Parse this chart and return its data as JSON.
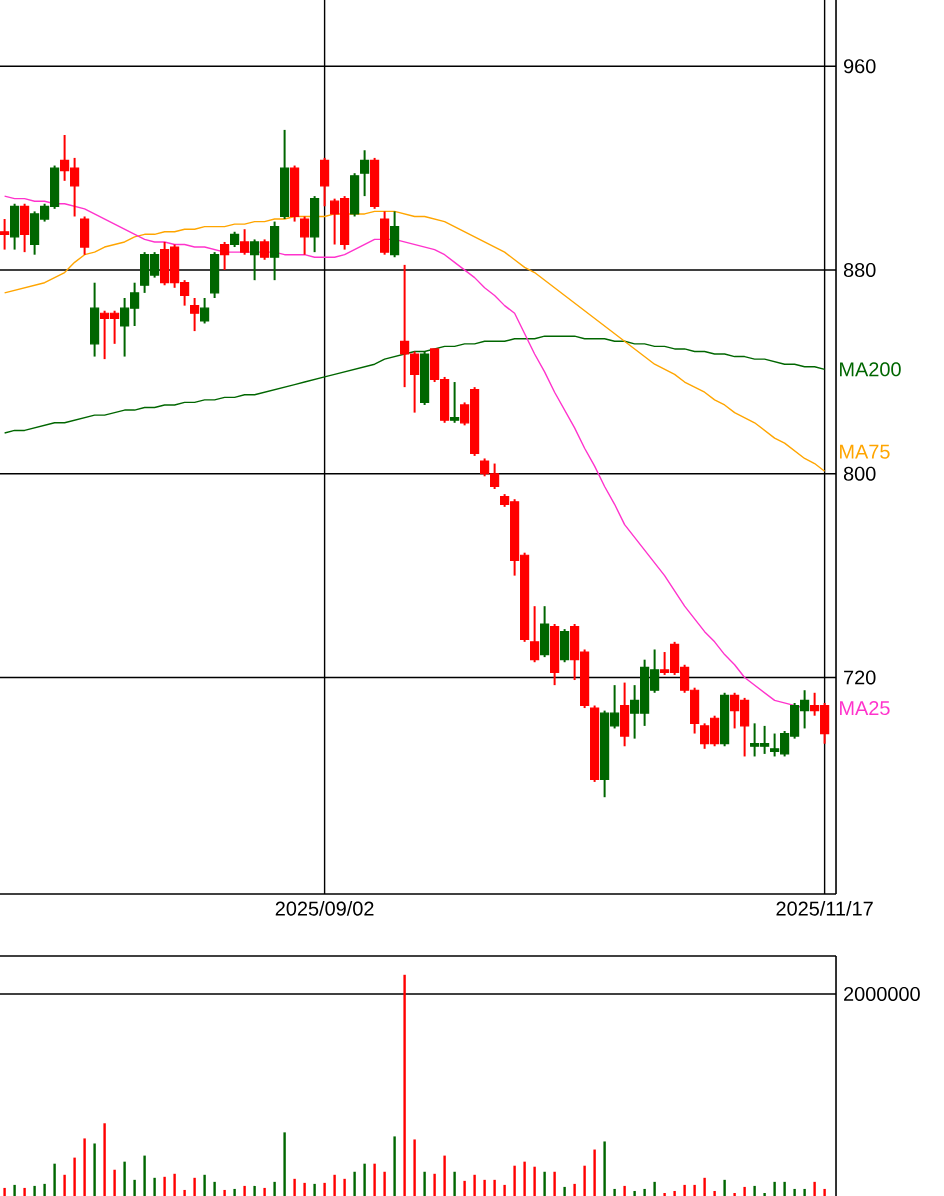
{
  "chart_data": [
    {
      "type": "candlestick",
      "categories": [
        null,
        null,
        null,
        null,
        null,
        null,
        null,
        null,
        null,
        null,
        null,
        null,
        null,
        null,
        null,
        null,
        null,
        null,
        null,
        null,
        null,
        null,
        null,
        null,
        null,
        null,
        null,
        null,
        null,
        null,
        null,
        null,
        "2025/09/02",
        null,
        null,
        null,
        null,
        null,
        null,
        null,
        null,
        null,
        null,
        null,
        null,
        null,
        null,
        null,
        null,
        null,
        null,
        null,
        null,
        null,
        null,
        null,
        null,
        null,
        null,
        null,
        null,
        null,
        null,
        null,
        null,
        null,
        null,
        null,
        null,
        null,
        null,
        null,
        null,
        null,
        null,
        null,
        null,
        null,
        null,
        null,
        null,
        null,
        "2025/11/17"
      ],
      "ylim": [
        635,
        986
      ],
      "yticks": [
        720,
        800,
        880,
        960
      ],
      "grid": true,
      "series": [
        {
          "type": "candlestick",
          "ohlc": [
            [
              895,
              900,
              888,
              894
            ],
            [
              893,
              906,
              888,
              905
            ],
            [
              905,
              906,
              887,
              894
            ],
            [
              890,
              903,
              886,
              902
            ],
            [
              900,
              906,
              899,
              905
            ],
            [
              905,
              921,
              904,
              920
            ],
            [
              923,
              933,
              915,
              919
            ],
            [
              920,
              924,
              901,
              913
            ],
            [
              900,
              901,
              886,
              889
            ],
            [
              851,
              875,
              846,
              865
            ],
            [
              863,
              864,
              845,
              861
            ],
            [
              863,
              864,
              851,
              861
            ],
            [
              858,
              869,
              846,
              865
            ],
            [
              865,
              875,
              858,
              871
            ],
            [
              874,
              887,
              871,
              886
            ],
            [
              878,
              887,
              877,
              886
            ],
            [
              888,
              891,
              874,
              875
            ],
            [
              889,
              890,
              873,
              875
            ],
            [
              875,
              876,
              866,
              870
            ],
            [
              866,
              869,
              856,
              863
            ],
            [
              860,
              869,
              859,
              865
            ],
            [
              871,
              887,
              869,
              886
            ],
            [
              890,
              891,
              880,
              886
            ],
            [
              890,
              895,
              889,
              894
            ],
            [
              891,
              896,
              886,
              887
            ],
            [
              886,
              892,
              876,
              891
            ],
            [
              891,
              892,
              884,
              885
            ],
            [
              885,
              899,
              876,
              897
            ],
            [
              901,
              935,
              900,
              920
            ],
            [
              920,
              921,
              899,
              901
            ],
            [
              900,
              901,
              886,
              893
            ],
            [
              893,
              909,
              887,
              908
            ],
            [
              923,
              924,
              905,
              913
            ],
            [
              907,
              908,
              890,
              902
            ],
            [
              908,
              909,
              888,
              890
            ],
            [
              902,
              918,
              901,
              917
            ],
            [
              918,
              927,
              909,
              923
            ],
            [
              923,
              924,
              904,
              905
            ],
            [
              900,
              903,
              886,
              887
            ],
            [
              886,
              903,
              885,
              897
            ],
            [
              852,
              882,
              834,
              847
            ],
            [
              847,
              848,
              824,
              839
            ],
            [
              828,
              848,
              827,
              847
            ],
            [
              849,
              849,
              836,
              837
            ],
            [
              837,
              838,
              820,
              821
            ],
            [
              821,
              836,
              820,
              822
            ],
            [
              827,
              828,
              819,
              820
            ],
            [
              833,
              834,
              807,
              808
            ],
            [
              805,
              806,
              799,
              800
            ],
            [
              800,
              804,
              794,
              795
            ],
            [
              791,
              792,
              787,
              788
            ],
            [
              789,
              790,
              760,
              766
            ],
            [
              768,
              769,
              734,
              735
            ],
            [
              734,
              748,
              726,
              727
            ],
            [
              729,
              748,
              728,
              741
            ],
            [
              740,
              741,
              717,
              722
            ],
            [
              727,
              739,
              726,
              738
            ],
            [
              740,
              741,
              719,
              727
            ],
            [
              730,
              731,
              708,
              709
            ],
            [
              708,
              709,
              679,
              680
            ],
            [
              680,
              707,
              673,
              706
            ],
            [
              701,
              717,
              700,
              706
            ],
            [
              709,
              718,
              693,
              697
            ],
            [
              706,
              717,
              696,
              711
            ],
            [
              706,
              727,
              701,
              724
            ],
            [
              715,
              731,
              714,
              723
            ],
            [
              723,
              730,
              721,
              722
            ],
            [
              733,
              734,
              721,
              722
            ],
            [
              724,
              725,
              714,
              715
            ],
            [
              715,
              716,
              698,
              702
            ],
            [
              701,
              702,
              692,
              694
            ],
            [
              704,
              705,
              693,
              694
            ],
            [
              694,
              714,
              693,
              713
            ],
            [
              713,
              714,
              700,
              707
            ],
            [
              711,
              712,
              689,
              701
            ],
            [
              693,
              702,
              689,
              694
            ],
            [
              693,
              701,
              690,
              694
            ],
            [
              691,
              698,
              689,
              692
            ],
            [
              690,
              699,
              689,
              698
            ],
            [
              697,
              710,
              696,
              709
            ],
            [
              707,
              715,
              700,
              711
            ],
            [
              709,
              714,
              705,
              707
            ],
            [
              709,
              710,
              694,
              698
            ]
          ],
          "colors": [
            "#ff0000",
            "#006600",
            "#ff0000",
            "#006600",
            "#006600",
            "#006600",
            "#ff0000",
            "#ff0000",
            "#ff0000",
            "#006600",
            "#ff0000",
            "#ff0000",
            "#006600",
            "#006600",
            "#006600",
            "#006600",
            "#ff0000",
            "#ff0000",
            "#ff0000",
            "#ff0000",
            "#006600",
            "#006600",
            "#ff0000",
            "#006600",
            "#ff0000",
            "#006600",
            "#ff0000",
            "#006600",
            "#006600",
            "#ff0000",
            "#ff0000",
            "#006600",
            "#ff0000",
            "#ff0000",
            "#ff0000",
            "#006600",
            "#006600",
            "#ff0000",
            "#ff0000",
            "#006600",
            "#ff0000",
            "#ff0000",
            "#006600",
            "#ff0000",
            "#ff0000",
            "#006600",
            "#ff0000",
            "#ff0000",
            "#ff0000",
            "#ff0000",
            "#ff0000",
            "#ff0000",
            "#ff0000",
            "#ff0000",
            "#006600",
            "#ff0000",
            "#006600",
            "#ff0000",
            "#ff0000",
            "#ff0000",
            "#006600",
            "#006600",
            "#ff0000",
            "#006600",
            "#006600",
            "#006600",
            "#ff0000",
            "#ff0000",
            "#ff0000",
            "#ff0000",
            "#ff0000",
            "#ff0000",
            "#006600",
            "#ff0000",
            "#ff0000",
            "#006600",
            "#006600",
            "#006600",
            "#006600",
            "#006600",
            "#006600",
            "#ff0000",
            "#ff0000"
          ]
        },
        {
          "type": "line",
          "name": "MA200",
          "color": "#006600",
          "values": [
            816,
            817,
            817,
            818,
            819,
            820,
            820,
            821,
            822,
            823,
            823,
            824,
            825,
            825,
            826,
            826,
            827,
            827,
            828,
            828,
            829,
            829,
            830,
            830,
            831,
            831,
            832,
            833,
            834,
            835,
            836,
            837,
            838,
            839,
            840,
            841,
            842,
            843,
            845,
            846,
            847,
            848,
            848,
            849,
            850,
            850,
            851,
            851,
            852,
            852,
            852,
            853,
            853,
            853,
            854,
            854,
            854,
            854,
            853,
            853,
            853,
            852,
            852,
            851,
            851,
            850,
            850,
            849,
            849,
            848,
            848,
            847,
            847,
            846,
            846,
            845,
            845,
            844,
            843,
            843,
            842,
            842,
            841
          ]
        },
        {
          "type": "line",
          "name": "MA75",
          "color": "#ffa500",
          "values": [
            871,
            872,
            873,
            874,
            875,
            877,
            879,
            883,
            886,
            887,
            889,
            890,
            891,
            893,
            894,
            894,
            895,
            895,
            896,
            896,
            897,
            897,
            897,
            898,
            898,
            899,
            899,
            900,
            900,
            901,
            901,
            901,
            901,
            902,
            902,
            902,
            902,
            903,
            903,
            903,
            902,
            901,
            901,
            900,
            899,
            897,
            895,
            893,
            891,
            889,
            887,
            884,
            881,
            879,
            876,
            873,
            870,
            867,
            864,
            861,
            858,
            855,
            852,
            849,
            846,
            843,
            841,
            839,
            836,
            834,
            832,
            829,
            827,
            824,
            822,
            820,
            817,
            814,
            812,
            809,
            806,
            804,
            801
          ]
        },
        {
          "type": "line",
          "name": "MA25",
          "color": "#ff33cc",
          "values": [
            909,
            908,
            908,
            907,
            907,
            906,
            906,
            905,
            904,
            902,
            900,
            898,
            896,
            894,
            892,
            891,
            891,
            890,
            890,
            889,
            889,
            888,
            887,
            887,
            887,
            887,
            887,
            887,
            886,
            886,
            886,
            885,
            885,
            885,
            886,
            888,
            890,
            892,
            892,
            892,
            891,
            890,
            889,
            888,
            886,
            883,
            880,
            877,
            873,
            870,
            866,
            863,
            855,
            847,
            840,
            832,
            825,
            818,
            810,
            803,
            795,
            788,
            780,
            775,
            770,
            765,
            760,
            754,
            748,
            743,
            738,
            734,
            729,
            725,
            720,
            717,
            714,
            711,
            710,
            709,
            708,
            null,
            null
          ]
        }
      ]
    },
    {
      "type": "bar",
      "categories": [
        null,
        null,
        null,
        null,
        null,
        null,
        null,
        null,
        null,
        null,
        null,
        null,
        null,
        null,
        null,
        null,
        null,
        null,
        null,
        null,
        null,
        null,
        null,
        null,
        null,
        null,
        null,
        null,
        null,
        null,
        null,
        null,
        null,
        null,
        null,
        null,
        null,
        null,
        null,
        null,
        null,
        null,
        null,
        null,
        null,
        null,
        null,
        null,
        null,
        null,
        null,
        null,
        null,
        null,
        null,
        null,
        null,
        null,
        null,
        null,
        null,
        null,
        null,
        null,
        null,
        null,
        null,
        null,
        null,
        null,
        null,
        null,
        null,
        null,
        null,
        null,
        null,
        null,
        null,
        null,
        null,
        null,
        null
      ],
      "values": [
        80000,
        110000,
        80000,
        100000,
        120000,
        320000,
        210000,
        380000,
        570000,
        520000,
        720000,
        260000,
        340000,
        160000,
        400000,
        180000,
        190000,
        220000,
        60000,
        180000,
        210000,
        140000,
        60000,
        70000,
        100000,
        100000,
        80000,
        140000,
        630000,
        170000,
        130000,
        120000,
        130000,
        210000,
        170000,
        240000,
        320000,
        320000,
        240000,
        590000,
        2190000,
        560000,
        240000,
        220000,
        400000,
        240000,
        150000,
        210000,
        160000,
        160000,
        110000,
        300000,
        340000,
        290000,
        240000,
        240000,
        90000,
        120000,
        300000,
        460000,
        540000,
        70000,
        100000,
        50000,
        70000,
        140000,
        30000,
        50000,
        110000,
        110000,
        180000,
        50000,
        160000,
        30000,
        90000,
        100000,
        30000,
        140000,
        140000,
        70000,
        70000,
        140000,
        70000
      ],
      "colors": [
        "#ff0000",
        "#006600",
        "#ff0000",
        "#006600",
        "#006600",
        "#006600",
        "#ff0000",
        "#ff0000",
        "#ff0000",
        "#006600",
        "#ff0000",
        "#ff0000",
        "#006600",
        "#006600",
        "#006600",
        "#006600",
        "#ff0000",
        "#ff0000",
        "#ff0000",
        "#ff0000",
        "#006600",
        "#006600",
        "#ff0000",
        "#006600",
        "#ff0000",
        "#006600",
        "#ff0000",
        "#006600",
        "#006600",
        "#ff0000",
        "#ff0000",
        "#006600",
        "#ff0000",
        "#ff0000",
        "#ff0000",
        "#006600",
        "#006600",
        "#ff0000",
        "#ff0000",
        "#006600",
        "#ff0000",
        "#ff0000",
        "#006600",
        "#ff0000",
        "#ff0000",
        "#006600",
        "#ff0000",
        "#ff0000",
        "#ff0000",
        "#ff0000",
        "#ff0000",
        "#ff0000",
        "#ff0000",
        "#ff0000",
        "#006600",
        "#ff0000",
        "#006600",
        "#ff0000",
        "#ff0000",
        "#ff0000",
        "#006600",
        "#006600",
        "#ff0000",
        "#006600",
        "#006600",
        "#006600",
        "#ff0000",
        "#ff0000",
        "#ff0000",
        "#ff0000",
        "#ff0000",
        "#ff0000",
        "#006600",
        "#ff0000",
        "#ff0000",
        "#006600",
        "#006600",
        "#006600",
        "#006600",
        "#006600",
        "#006600",
        "#ff0000",
        "#ff0000"
      ],
      "ylim": [
        0,
        2376000
      ],
      "yticks": [
        2000000
      ],
      "grid": "y",
      "tick_labels": "y"
    }
  ]
}
